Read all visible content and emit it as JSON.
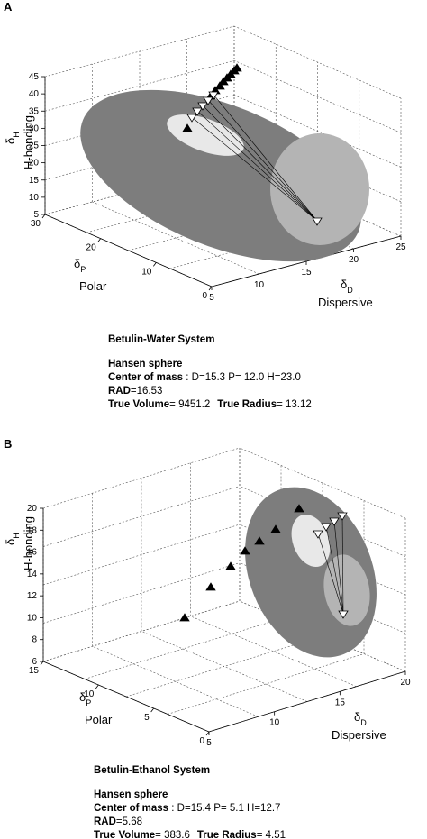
{
  "panels": [
    {
      "label": "A",
      "z_axis": {
        "symbol": "δ",
        "subscript": "H",
        "name": "H-bonding",
        "ticks": [
          5,
          10,
          15,
          20,
          25,
          30,
          35,
          40,
          45
        ]
      },
      "p_axis": {
        "symbol": "δ",
        "subscript": "P",
        "name": "Polar",
        "ticks": [
          30,
          20,
          10,
          0
        ]
      },
      "d_axis": {
        "symbol": "δ",
        "subscript": "D",
        "name": "Dispersive",
        "ticks": [
          5,
          10,
          15,
          20,
          25
        ]
      },
      "info": {
        "system": "Betulin-Water System",
        "method": "Hansen sphere",
        "center_label": "Center of mass",
        "center_value": " : D=15.3 P= 12.0 H=23.0",
        "rad_label": "RAD",
        "rad_value": "=16.53",
        "volume_label": "True Volume",
        "volume_value": "= 9451.2",
        "radius_label": "True Radius",
        "radius_value": "= 13.12"
      }
    },
    {
      "label": "B",
      "z_axis": {
        "symbol": "δ",
        "subscript": "H",
        "name": "H-bonding",
        "ticks": [
          6,
          8,
          10,
          12,
          14,
          16,
          18,
          20
        ]
      },
      "p_axis": {
        "symbol": "δ",
        "subscript": "P",
        "name": "Polar",
        "ticks": [
          15,
          10,
          5,
          0
        ]
      },
      "d_axis": {
        "symbol": "δ",
        "subscript": "D",
        "name": "Dispersive",
        "ticks": [
          5,
          10,
          15,
          20
        ]
      },
      "info": {
        "system": "Betulin-Ethanol System",
        "method": "Hansen sphere",
        "center_label": "Center of mass",
        "center_value": " : D=15.4 P= 5.1 H=12.7",
        "rad_label": "RAD",
        "rad_value": "=5.68",
        "volume_label": "True Volume",
        "volume_value": "= 383.6",
        "radius_label": "True Radius",
        "radius_value": "= 4.51"
      }
    }
  ]
}
